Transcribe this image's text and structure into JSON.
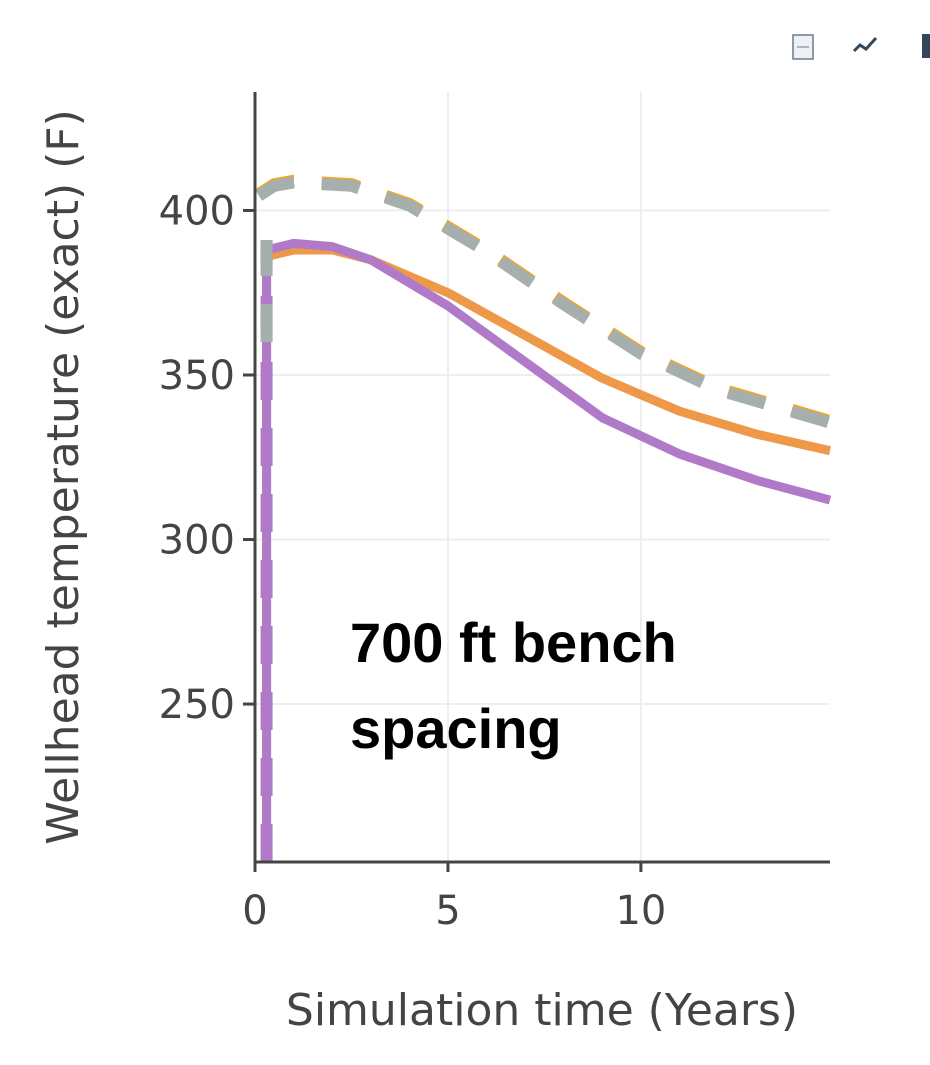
{
  "toolbar": {
    "icons": [
      "download-file-icon",
      "line-chart-icon",
      "more-icon"
    ]
  },
  "chart_data": {
    "type": "line",
    "title": "",
    "xlabel": "Simulation time (Years)",
    "ylabel": "Wellhead temperature (exact) (F)",
    "xlim": [
      0,
      14.9
    ],
    "ylim": [
      202,
      436
    ],
    "xticks": [
      0,
      5,
      10
    ],
    "yticks": [
      250,
      300,
      350,
      400
    ],
    "grid": true,
    "annotation": [
      "700 ft bench",
      "spacing"
    ],
    "series": [
      {
        "name": "orange-solid",
        "color": "#ee9849",
        "dash": false,
        "x": [
          0.3,
          0.3,
          1,
          2,
          3,
          5,
          7,
          9,
          11,
          13,
          14.9
        ],
        "y": [
          202,
          386,
          388,
          388,
          385,
          375,
          362,
          349,
          339,
          332,
          327
        ]
      },
      {
        "name": "purple-solid",
        "color": "#b07ac9",
        "dash": false,
        "x": [
          0.3,
          0.3,
          1,
          2,
          3,
          5,
          7,
          9,
          11,
          13,
          14.9
        ],
        "y": [
          202,
          388,
          390,
          389,
          385,
          371,
          354,
          337,
          326,
          318,
          312
        ]
      },
      {
        "name": "orange-dashed",
        "color": "#f5a623",
        "dash": true,
        "x": [
          0.1,
          0.5,
          1,
          2.5,
          4,
          6,
          8,
          10,
          12,
          14.9
        ],
        "y": [
          405,
          408,
          409,
          408,
          402,
          388,
          372,
          357,
          346,
          336
        ]
      },
      {
        "name": "gray-dashed",
        "color": "#a5afad",
        "dash": true,
        "x": [
          0.1,
          0.5,
          1,
          2.5,
          4,
          6,
          8,
          10,
          12,
          14.9
        ],
        "y": [
          404.5,
          407.5,
          408.5,
          407.5,
          401.5,
          387.5,
          371.5,
          356.5,
          345.5,
          335.5
        ]
      },
      {
        "name": "purple-dashed-vertical",
        "color": "#b07ac9",
        "dash": true,
        "x": [
          0.3,
          0.3
        ],
        "y": [
          202,
          391
        ]
      },
      {
        "name": "gray-dashed-vertical",
        "color": "#a5afad",
        "dash": true,
        "x": [
          0.3,
          0.3
        ],
        "y": [
          360,
          391
        ]
      }
    ]
  }
}
